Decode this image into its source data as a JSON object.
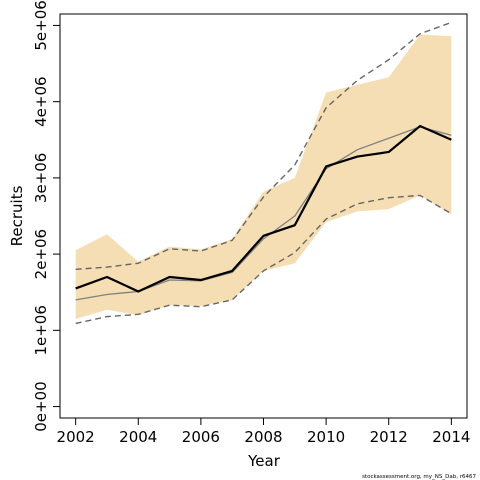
{
  "chart_data": {
    "type": "line",
    "xlabel": "Year",
    "ylabel": "Recruits",
    "xlim": [
      2001.5,
      2014.5
    ],
    "ylim": [
      -150000,
      5150000
    ],
    "x_ticks": [
      2002,
      2004,
      2006,
      2008,
      2010,
      2012,
      2014
    ],
    "x_tick_labels": [
      "2002",
      "2004",
      "2006",
      "2008",
      "2010",
      "2012",
      "2014"
    ],
    "y_ticks": [
      0,
      1000000,
      2000000,
      3000000,
      4000000,
      5000000
    ],
    "y_tick_labels": [
      "0e+00",
      "1e+06",
      "2e+06",
      "3e+06",
      "4e+06",
      "5e+06"
    ],
    "x": [
      2002,
      2003,
      2004,
      2005,
      2006,
      2007,
      2008,
      2009,
      2010,
      2011,
      2012,
      2013,
      2014
    ],
    "band": {
      "lower": [
        1150000,
        1270000,
        1200000,
        1330000,
        1320000,
        1400000,
        1780000,
        1880000,
        2420000,
        2560000,
        2590000,
        2770000,
        2520000
      ],
      "upper": [
        2050000,
        2260000,
        1900000,
        2100000,
        2060000,
        2200000,
        2820000,
        3000000,
        4120000,
        4220000,
        4320000,
        4880000,
        4860000
      ],
      "color": "#f5deb3"
    },
    "series": [
      {
        "values": [
          1550000,
          1700000,
          1510000,
          1700000,
          1660000,
          1780000,
          2240000,
          2380000,
          3150000,
          3280000,
          3340000,
          3680000,
          3500000
        ],
        "color": "#000000",
        "style": "solid-thick"
      },
      {
        "values": [
          1400000,
          1470000,
          1510000,
          1660000,
          1650000,
          1760000,
          2200000,
          2500000,
          3120000,
          3370000,
          3520000,
          3670000,
          3560000
        ],
        "color": "#808080",
        "style": "solid-thin"
      },
      {
        "values": [
          1800000,
          1830000,
          1880000,
          2070000,
          2040000,
          2180000,
          2750000,
          3170000,
          3920000,
          4280000,
          4550000,
          4890000,
          5040000
        ],
        "color": "#666666",
        "style": "dashed"
      },
      {
        "values": [
          1090000,
          1180000,
          1210000,
          1330000,
          1310000,
          1400000,
          1780000,
          2020000,
          2460000,
          2660000,
          2740000,
          2770000,
          2530000
        ],
        "color": "#666666",
        "style": "dashed"
      }
    ],
    "grid": false,
    "legend": "none"
  },
  "credit": "stockassessment.org, my_NS_Dab, r6467"
}
